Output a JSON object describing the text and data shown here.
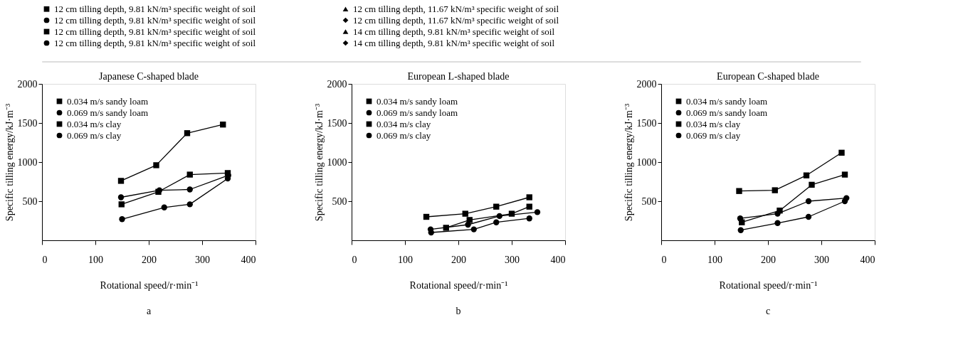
{
  "chart_data": [
    {
      "type": "other",
      "legend": "top",
      "series": [
        {
          "name": "12 cm tilling depth, 9.81 kN/m³ specific weight of soil",
          "color": "#000000",
          "marker": "square"
        },
        {
          "name": "12 cm tilling depth, 11.67 kN/m³ specific weight of soil",
          "color": "#000000",
          "marker": "triangle"
        },
        {
          "name": "12 cm tilling depth, 9.81 kN/m³ specific weight of soil",
          "color": "#000000",
          "marker": "circle"
        },
        {
          "name": "12 cm tilling depth, 11.67 kN/m³ specific weight of soil",
          "color": "#000000",
          "marker": "diamond"
        },
        {
          "name": "12 cm tilling depth, 9.81 kN/m³ specific weight of soil",
          "color": "#000000",
          "marker": "square"
        },
        {
          "name": "14 cm tilling depth, 9.81 kN/m³ specific weight of soil",
          "color": "#000000",
          "marker": "triangle"
        },
        {
          "name": "12 cm tilling depth, 9.81 kN/m³ specific weight of soil",
          "color": "#000000",
          "marker": "circle"
        },
        {
          "name": "14 cm tilling depth, 9.81 kN/m³ specific weight of soil",
          "color": "#000000",
          "marker": "diamond"
        }
      ]
    },
    {
      "type": "line",
      "title": "Japanese C-shaped blade",
      "xlabel": "Rotational speed/r·min⁻¹",
      "ylabel": "Specific tilling energy/kJ·m⁻³",
      "xlim": [
        0,
        400
      ],
      "xticks": [
        0,
        100,
        200,
        300,
        400
      ],
      "ylim": [
        0,
        2000
      ],
      "yticks": [
        500,
        1000,
        1500,
        2000
      ],
      "legend": "top left",
      "line_style": "solid",
      "annotations": [
        "a"
      ],
      "series": [
        {
          "name": "0.034 m/s sandy loam",
          "color": "#000000",
          "marker": "square",
          "x": [
            149,
            218,
            277,
            348
          ],
          "values": [
            460,
            620,
            840,
            860
          ]
        },
        {
          "name": "0.069 m/s sandy loam",
          "color": "#000000",
          "marker": "circle",
          "x": [
            150,
            229,
            277,
            348
          ],
          "values": [
            270,
            420,
            460,
            790
          ]
        },
        {
          "name": "0.034 m/s clay",
          "color": "#000000",
          "marker": "square",
          "x": [
            148,
            214,
            272,
            339
          ],
          "values": [
            760,
            960,
            1370,
            1480
          ]
        },
        {
          "name": "0.069 m/s clay",
          "color": "#000000",
          "marker": "circle",
          "x": [
            148,
            220,
            277,
            349
          ],
          "values": [
            550,
            640,
            650,
            830
          ]
        }
      ]
    },
    {
      "type": "line",
      "title": "European L-shaped blade",
      "xlabel": "Rotational speed/r·min⁻¹",
      "ylabel": "Specific tilling energy/kJ·m⁻³",
      "xlim": [
        0,
        400
      ],
      "xticks": [
        0,
        100,
        200,
        300,
        400
      ],
      "ylim": [
        0,
        2000
      ],
      "yticks": [
        500,
        1000,
        1500,
        2000
      ],
      "legend": "top left",
      "line_style": "solid",
      "annotations": [
        "b"
      ],
      "series": [
        {
          "name": "0.034 m/s sandy loam",
          "color": "#000000",
          "marker": "square",
          "x": [
            177,
            221,
            300,
            333
          ],
          "values": [
            160,
            260,
            340,
            430
          ]
        },
        {
          "name": "0.069 m/s sandy loam",
          "color": "#000000",
          "marker": "circle",
          "x": [
            149,
            229,
            271,
            333
          ],
          "values": [
            100,
            140,
            230,
            280
          ]
        },
        {
          "name": "0.034 m/s clay",
          "color": "#000000",
          "marker": "square",
          "x": [
            140,
            213,
            271,
            333
          ],
          "values": [
            300,
            340,
            430,
            550
          ]
        },
        {
          "name": "0.069 m/s clay",
          "color": "#000000",
          "marker": "circle",
          "x": [
            148,
            218,
            277,
            348
          ],
          "values": [
            140,
            200,
            310,
            360
          ]
        }
      ]
    },
    {
      "type": "line",
      "title": "European C-shaped blade",
      "xlabel": "Rotational speed/r·min⁻¹",
      "ylabel": "Specific tilling energy/kJ·m⁻³",
      "xlim": [
        0,
        400
      ],
      "xticks": [
        0,
        100,
        200,
        300,
        400
      ],
      "ylim": [
        0,
        2000
      ],
      "yticks": [
        500,
        1000,
        1500,
        2000
      ],
      "legend": "top left",
      "line_style": "solid",
      "annotations": [
        "c"
      ],
      "series": [
        {
          "name": "0.034 m/s sandy loam",
          "color": "#000000",
          "marker": "square",
          "x": [
            151,
            222,
            282,
            344
          ],
          "values": [
            230,
            380,
            710,
            840
          ]
        },
        {
          "name": "0.069 m/s sandy loam",
          "color": "#000000",
          "marker": "circle",
          "x": [
            149,
            218,
            276,
            344
          ],
          "values": [
            130,
            220,
            300,
            500
          ]
        },
        {
          "name": "0.034 m/s clay",
          "color": "#000000",
          "marker": "square",
          "x": [
            146,
            213,
            272,
            338
          ],
          "values": [
            630,
            640,
            830,
            1120
          ]
        },
        {
          "name": "0.069 m/s clay",
          "color": "#000000",
          "marker": "circle",
          "x": [
            148,
            218,
            276,
            347
          ],
          "values": [
            280,
            340,
            500,
            540
          ]
        }
      ]
    }
  ]
}
